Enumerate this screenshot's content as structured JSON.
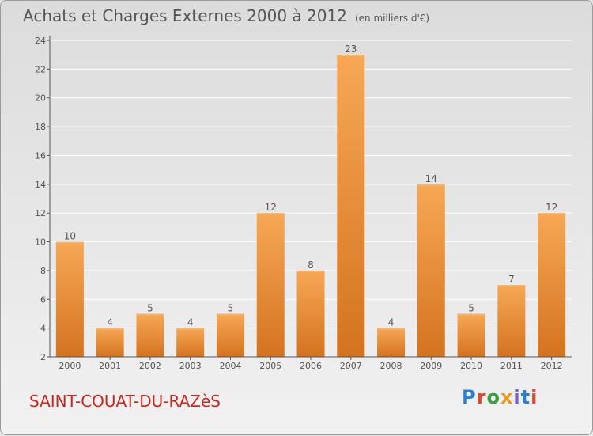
{
  "header": {
    "title": "Achats et Charges Externes 2000 à 2012",
    "subtitle": "(en milliers d'€)"
  },
  "footer": {
    "town": "SAINT-COUAT-DU-RAZèS",
    "brand": "Proxiti",
    "brand_colors": [
      "#2a7fd4",
      "#e0462c",
      "#3aa23c",
      "#e89a1c",
      "#7a5cc4",
      "#2a7fd4",
      "#e0462c"
    ]
  },
  "colors": {
    "bar_light": "#f7a855",
    "bar_dark": "#d4731f",
    "axis": "#555555",
    "grid": "#ffffff"
  },
  "chart_data": {
    "type": "bar",
    "categories": [
      "2000",
      "2001",
      "2002",
      "2003",
      "2004",
      "2005",
      "2006",
      "2007",
      "2008",
      "2009",
      "2010",
      "2011",
      "2012"
    ],
    "values": [
      10,
      4,
      5,
      4,
      5,
      12,
      8,
      23,
      4,
      14,
      5,
      7,
      12
    ],
    "ylim": [
      2,
      24
    ],
    "yticks": [
      2,
      4,
      6,
      8,
      10,
      12,
      14,
      16,
      18,
      20,
      22,
      24
    ],
    "grid": true,
    "xlabel": "",
    "ylabel": ""
  }
}
